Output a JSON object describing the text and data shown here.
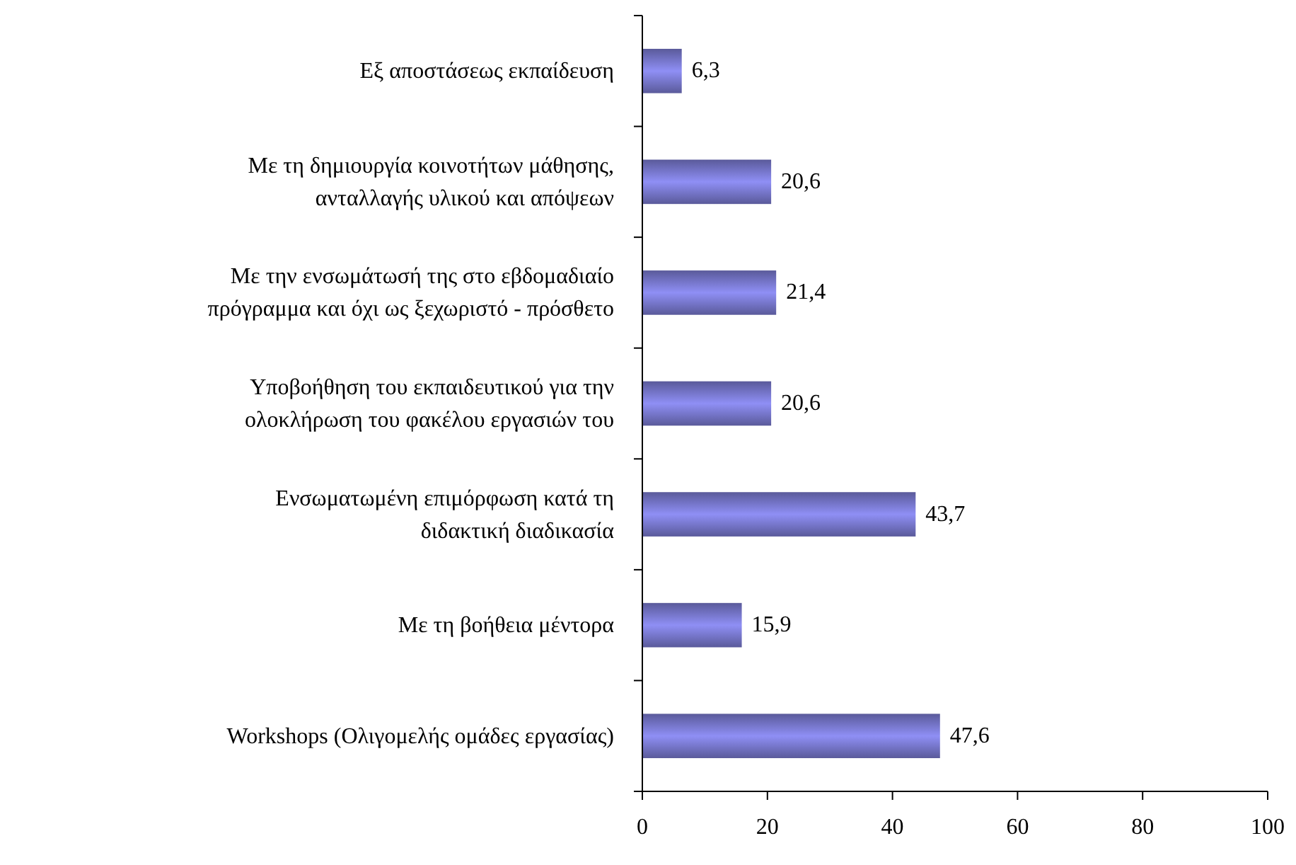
{
  "chart_data": {
    "type": "bar",
    "orientation": "horizontal",
    "categories": [
      "Εξ αποστάσεως εκπαίδευση",
      "Με τη δημιουργία κοινοτήτων μάθησης,\nανταλλαγής υλικού και απόψεων",
      "Με την ενσωμάτωσή της στο εβδομαδιαίο\nπρόγραμμα και όχι ως ξεχωριστό - πρόσθετο",
      "Υποβοήθηση του εκπαιδευτικού για την\nολοκλήρωση του φακέλου εργασιών του",
      "Ενσωματωμένη επιμόρφωση κατά τη\nδιδακτική διαδικασία",
      "Με τη βοήθεια μέντορα",
      "Workshops (Ολιγομελής ομάδες εργασίας)"
    ],
    "values": [
      6.3,
      20.6,
      21.4,
      20.6,
      43.7,
      15.9,
      47.6
    ],
    "value_labels": [
      "6,3",
      "20,6",
      "21,4",
      "20,6",
      "43,7",
      "15,9",
      "47,6"
    ],
    "color": "#8f8ff5",
    "xlim": [
      0,
      100
    ],
    "xticks": [
      0,
      20,
      40,
      60,
      80,
      100
    ],
    "grid": false
  }
}
